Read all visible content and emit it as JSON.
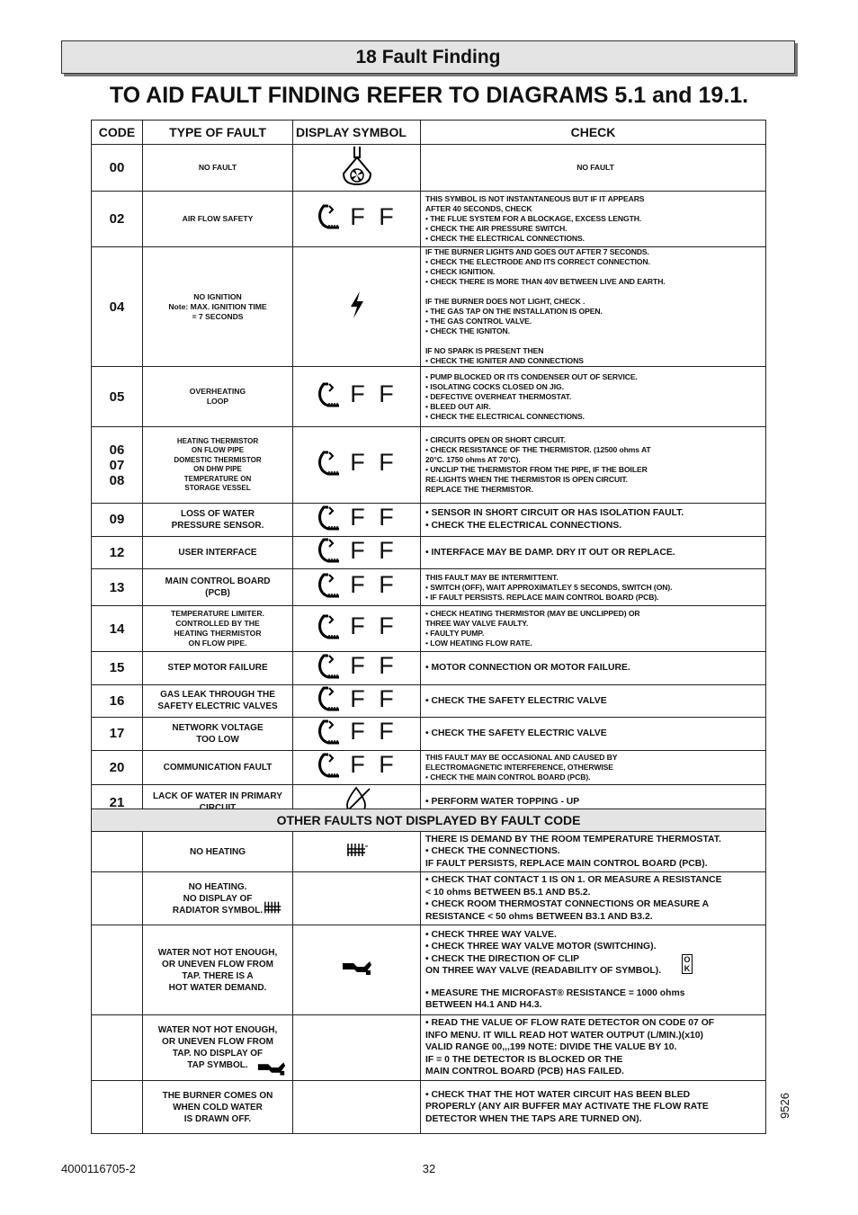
{
  "header": {
    "title": "18 Fault Finding"
  },
  "heading": "TO AID FAULT FINDING REFER TO DIAGRAMS 5.1 and 19.1.",
  "table": {
    "columns": [
      "CODE",
      "TYPE OF FAULT",
      "DISPLAY SYMBOL",
      "CHECK"
    ],
    "rows": [
      {
        "code": [
          "00"
        ],
        "fault": [
          "NO FAULT"
        ],
        "check": [
          "NO FAULT"
        ]
      },
      {
        "code": [
          "02"
        ],
        "fault": [
          "AIR FLOW SAFETY"
        ],
        "display": "F F",
        "check": [
          "THIS SYMBOL IS NOT INSTANTANEOUS BUT IF IT APPEARS",
          "AFTER 40 SECONDS, CHECK",
          "• THE FLUE SYSTEM FOR A BLOCKAGE, EXCESS LENGTH.",
          "• CHECK THE AIR PRESSURE SWITCH.",
          "• CHECK  THE ELECTRICAL CONNECTIONS."
        ]
      },
      {
        "code": [
          "04"
        ],
        "fault": [
          "NO IGNITION",
          "Note: MAX. IGNITION TIME",
          "= 7 SECONDS"
        ],
        "check": [
          [
            "IF THE BURNER LIGHTS AND GOES OUT AFTER 7 SECONDS.",
            "• CHECK THE ELECTRODE AND ITS CORRECT CONNECTION.",
            "• CHECK IGNITION.",
            "• CHECK THERE IS MORE THAN 40V BETWEEN LIVE AND EARTH."
          ],
          [
            "IF THE BURNER DOES NOT LIGHT, CHECK .",
            "• THE GAS TAP ON THE INSTALLATION IS OPEN.",
            "• THE GAS CONTROL VALVE.",
            "• CHECK THE IGNITON."
          ],
          [
            "IF NO SPARK IS PRESENT THEN",
            "• CHECK THE IGNITER AND CONNECTIONS"
          ]
        ]
      },
      {
        "code": [
          "05"
        ],
        "fault": [
          "OVERHEATING",
          "LOOP"
        ],
        "display": "F F",
        "check": [
          "• PUMP BLOCKED OR ITS CONDENSER OUT OF SERVICE.",
          "• ISOLATING COCKS CLOSED ON JIG.",
          "• DEFECTIVE OVERHEAT THERMOSTAT.",
          "• BLEED OUT AIR.",
          "• CHECK THE ELECTRICAL CONNECTIONS."
        ]
      },
      {
        "code": [
          "06",
          "07",
          "08"
        ],
        "fault": [
          [
            "HEATING THERMISTOR",
            "ON FLOW PIPE"
          ],
          [
            "DOMESTIC THERMISTOR",
            "ON DHW PIPE"
          ],
          [
            "TEMPERATURE ON",
            "STORAGE VESSEL"
          ]
        ],
        "display": "F F",
        "check": [
          "• CIRCUITS OPEN OR SHORT CIRCUIT.",
          "• CHECK RESISTANCE OF THE THERMISTOR.  (12500 ohms AT",
          "20°C. 1750 ohms AT 70°C).",
          "• UNCLIP THE THERMISTOR FROM THE PIPE, IF THE BOILER",
          "RE-LIGHTS WHEN THE THERMISTOR IS OPEN CIRCUIT.",
          "REPLACE THE THERMISTOR."
        ]
      },
      {
        "code": [
          "09"
        ],
        "fault": [
          "LOSS OF WATER",
          "PRESSURE SENSOR."
        ],
        "display": "F F",
        "check": [
          "• SENSOR IN SHORT CIRCUIT OR HAS ISOLATION FAULT.",
          "• CHECK THE ELECTRICAL CONNECTIONS."
        ]
      },
      {
        "code": [
          "12"
        ],
        "fault": [
          "USER INTERFACE"
        ],
        "display": "F F",
        "check": [
          "• INTERFACE MAY BE DAMP.  DRY IT OUT OR REPLACE."
        ]
      },
      {
        "code": [
          "13"
        ],
        "fault": [
          "MAIN CONTROL BOARD",
          "(PCB)"
        ],
        "display": "F F",
        "check": [
          "THIS FAULT MAY BE INTERMITTENT.",
          "• SWITCH (OFF), WAIT APPROXIMATLEY 5 SECONDS, SWITCH (ON).",
          "• IF FAULT PERSISTS. REPLACE MAIN CONTROL BOARD (PCB)."
        ]
      },
      {
        "code": [
          "14"
        ],
        "fault": [
          "TEMPERATURE LIMITER.",
          "CONTROLLED BY THE",
          "HEATING THERMISTOR",
          "ON FLOW PIPE."
        ],
        "display": "F F",
        "check": [
          "• CHECK HEATING THERMISTOR (MAY BE UNCLIPPED) OR",
          "THREE WAY VALVE FAULTY.",
          "• FAULTY PUMP.",
          "• LOW HEATING FLOW RATE."
        ]
      },
      {
        "code": [
          "15"
        ],
        "fault": [
          "STEP MOTOR FAILURE"
        ],
        "display": "F F",
        "check": [
          "• MOTOR CONNECTION OR MOTOR FAILURE."
        ]
      },
      {
        "code": [
          "16"
        ],
        "fault": [
          "GAS LEAK THROUGH THE",
          "SAFETY ELECTRIC VALVES"
        ],
        "display": "F F",
        "check": [
          "• CHECK THE SAFETY ELECTRIC VALVE"
        ]
      },
      {
        "code": [
          "17"
        ],
        "fault": [
          "NETWORK VOLTAGE",
          "TOO LOW"
        ],
        "display": "F F",
        "check": [
          "• CHECK THE SAFETY ELECTRIC VALVE"
        ]
      },
      {
        "code": [
          "20"
        ],
        "fault": [
          "COMMUNICATION FAULT"
        ],
        "display": "F F",
        "check": [
          "THIS FAULT MAY BE OCCASIONAL AND CAUSED BY",
          "ELECTROMAGNETIC INTERFERENCE,  OTHERWISE",
          "• CHECK THE MAIN CONTROL BOARD (PCB)."
        ]
      },
      {
        "code": [
          "21"
        ],
        "fault": [
          "LACK OF WATER IN PRIMARY",
          "CIRCUIT"
        ],
        "check": [
          "• PERFORM WATER TOPPING - UP"
        ]
      }
    ]
  },
  "table2": {
    "title": "OTHER FAULTS NOT DISPLAYED BY FAULT CODE",
    "rows": [
      {
        "fault": [
          "NO HEATING"
        ],
        "check": [
          "THERE IS DEMAND BY THE ROOM TEMPERATURE THERMOSTAT.",
          "• CHECK THE CONNECTIONS.",
          "IF FAULT PERSISTS, REPLACE MAIN CONTROL BOARD (PCB)."
        ]
      },
      {
        "fault": [
          "NO HEATING.",
          "NO DISPLAY OF",
          "RADIATOR SYMBOL."
        ],
        "check": [
          "• CHECK THAT CONTACT 1 IS ON 1.  OR MEASURE A RESISTANCE",
          "< 10 ohms BETWEEN B5.1 AND B5.2.",
          "• CHECK ROOM THERMOSTAT CONNECTIONS OR MEASURE A",
          "RESISTANCE < 50 ohms BETWEEN B3.1 AND B3.2."
        ]
      },
      {
        "fault": [
          "WATER NOT HOT ENOUGH,",
          "OR UNEVEN FLOW FROM",
          "TAP.  THERE IS A",
          "HOT WATER DEMAND."
        ],
        "check": [
          [
            "• CHECK THREE WAY VALVE.",
            "• CHECK THREE WAY VALVE MOTOR (SWITCHING).",
            "• CHECK THE DIRECTION OF CLIP",
            "ON THREE WAY VALVE (READABILITY OF SYMBOL)."
          ],
          [
            "• MEASURE THE MICROFAST® RESISTANCE = 1000 ohms",
            "BETWEEN H4.1 AND H4.3."
          ]
        ],
        "badge": [
          "O",
          "K"
        ]
      },
      {
        "fault": [
          "WATER NOT HOT ENOUGH,",
          "OR UNEVEN FLOW FROM",
          "TAP.  NO DISPLAY OF",
          "TAP SYMBOL."
        ],
        "check": [
          "• READ THE VALUE OF FLOW RATE DETECTOR ON CODE 07 OF",
          "INFO MENU. IT WILL READ HOT WATER OUTPUT (L/MIN.)(x10)",
          "VALID RANGE 00,,,199 NOTE: DIVIDE THE VALUE BY 10.",
          "IF = 0 THE DETECTOR IS BLOCKED OR THE",
          "MAIN CONTROL BOARD (PCB) HAS FAILED."
        ]
      },
      {
        "fault": [
          "THE BURNER COMES ON",
          "WHEN COLD WATER",
          "IS DRAWN OFF."
        ],
        "check": [
          "• CHECK THAT THE HOT WATER CIRCUIT HAS BEEN BLED",
          "PROPERLY (ANY AIR BUFFER MAY ACTIVATE THE FLOW RATE",
          "DETECTOR WHEN THE TAPS ARE TURNED ON)."
        ]
      }
    ]
  },
  "footer": {
    "doc_number": "4000116705-2",
    "page": "32",
    "ref": "9526"
  }
}
